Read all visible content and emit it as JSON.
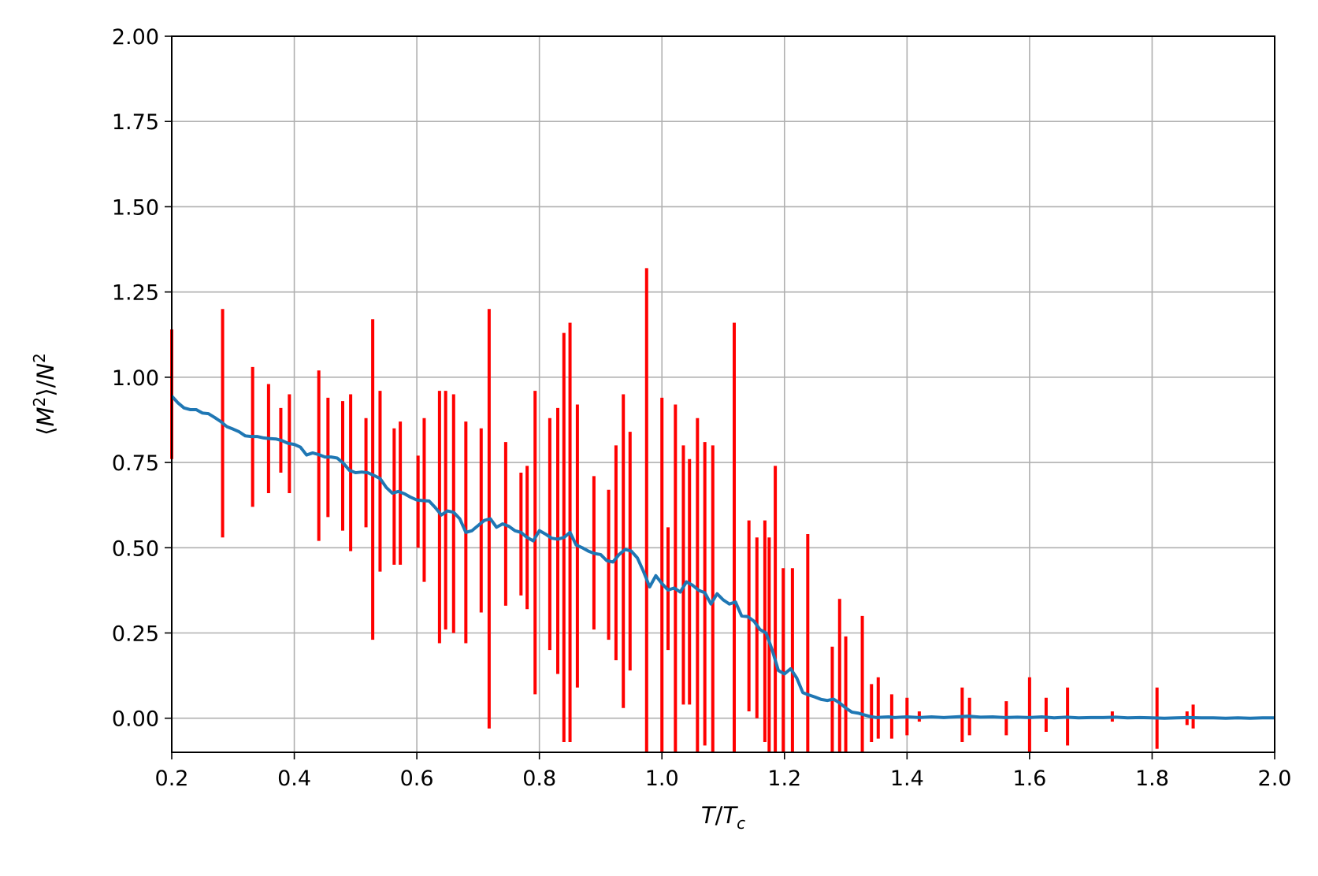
{
  "chart_data": {
    "type": "line",
    "xlabel": "T/T_c",
    "ylabel": "⟨M²⟩/N²",
    "xlim": [
      0.2,
      2.0
    ],
    "ylim": [
      -0.1,
      2.0
    ],
    "grid": true,
    "xticks": [
      "0.2",
      "0.4",
      "0.6",
      "0.8",
      "1.0",
      "1.2",
      "1.4",
      "1.6",
      "1.8",
      "2.0"
    ],
    "yticks": [
      "0.00",
      "0.25",
      "0.50",
      "0.75",
      "1.00",
      "1.25",
      "1.50",
      "1.75",
      "2.00"
    ],
    "colors": {
      "line": "#1f77b4",
      "errorbar": "#ff0000",
      "grid": "#b0b0b0"
    },
    "series": [
      {
        "values": [
          [
            0.2,
            0.945
          ],
          [
            0.21,
            0.925
          ],
          [
            0.22,
            0.91
          ],
          [
            0.23,
            0.905
          ],
          [
            0.24,
            0.905
          ],
          [
            0.25,
            0.895
          ],
          [
            0.26,
            0.893
          ],
          [
            0.27,
            0.882
          ],
          [
            0.28,
            0.87
          ],
          [
            0.29,
            0.855
          ],
          [
            0.3,
            0.848
          ],
          [
            0.31,
            0.84
          ],
          [
            0.32,
            0.828
          ],
          [
            0.33,
            0.826
          ],
          [
            0.34,
            0.826
          ],
          [
            0.35,
            0.822
          ],
          [
            0.36,
            0.82
          ],
          [
            0.37,
            0.819
          ],
          [
            0.38,
            0.814
          ],
          [
            0.39,
            0.806
          ],
          [
            0.4,
            0.803
          ],
          [
            0.41,
            0.795
          ],
          [
            0.42,
            0.772
          ],
          [
            0.43,
            0.778
          ],
          [
            0.44,
            0.773
          ],
          [
            0.45,
            0.766
          ],
          [
            0.46,
            0.766
          ],
          [
            0.47,
            0.763
          ],
          [
            0.48,
            0.748
          ],
          [
            0.49,
            0.727
          ],
          [
            0.5,
            0.72
          ],
          [
            0.51,
            0.722
          ],
          [
            0.52,
            0.72
          ],
          [
            0.53,
            0.712
          ],
          [
            0.54,
            0.703
          ],
          [
            0.55,
            0.677
          ],
          [
            0.56,
            0.66
          ],
          [
            0.57,
            0.665
          ],
          [
            0.58,
            0.658
          ],
          [
            0.59,
            0.648
          ],
          [
            0.6,
            0.64
          ],
          [
            0.61,
            0.638
          ],
          [
            0.62,
            0.637
          ],
          [
            0.63,
            0.618
          ],
          [
            0.64,
            0.596
          ],
          [
            0.65,
            0.608
          ],
          [
            0.66,
            0.604
          ],
          [
            0.67,
            0.585
          ],
          [
            0.68,
            0.545
          ],
          [
            0.69,
            0.55
          ],
          [
            0.7,
            0.565
          ],
          [
            0.71,
            0.58
          ],
          [
            0.72,
            0.585
          ],
          [
            0.73,
            0.56
          ],
          [
            0.74,
            0.57
          ],
          [
            0.75,
            0.563
          ],
          [
            0.76,
            0.55
          ],
          [
            0.77,
            0.545
          ],
          [
            0.78,
            0.53
          ],
          [
            0.79,
            0.52
          ],
          [
            0.8,
            0.55
          ],
          [
            0.81,
            0.54
          ],
          [
            0.82,
            0.528
          ],
          [
            0.83,
            0.525
          ],
          [
            0.84,
            0.53
          ],
          [
            0.85,
            0.545
          ],
          [
            0.86,
            0.508
          ],
          [
            0.87,
            0.5
          ],
          [
            0.88,
            0.49
          ],
          [
            0.89,
            0.483
          ],
          [
            0.9,
            0.48
          ],
          [
            0.91,
            0.462
          ],
          [
            0.92,
            0.458
          ],
          [
            0.93,
            0.48
          ],
          [
            0.94,
            0.495
          ],
          [
            0.95,
            0.49
          ],
          [
            0.96,
            0.47
          ],
          [
            0.97,
            0.43
          ],
          [
            0.98,
            0.385
          ],
          [
            0.99,
            0.418
          ],
          [
            1.0,
            0.395
          ],
          [
            1.01,
            0.376
          ],
          [
            1.02,
            0.382
          ],
          [
            1.03,
            0.37
          ],
          [
            1.04,
            0.4
          ],
          [
            1.05,
            0.39
          ],
          [
            1.06,
            0.375
          ],
          [
            1.07,
            0.368
          ],
          [
            1.08,
            0.335
          ],
          [
            1.09,
            0.365
          ],
          [
            1.1,
            0.347
          ],
          [
            1.11,
            0.335
          ],
          [
            1.12,
            0.341
          ],
          [
            1.13,
            0.3
          ],
          [
            1.14,
            0.298
          ],
          [
            1.15,
            0.285
          ],
          [
            1.16,
            0.26
          ],
          [
            1.17,
            0.25
          ],
          [
            1.18,
            0.2
          ],
          [
            1.19,
            0.14
          ],
          [
            1.2,
            0.13
          ],
          [
            1.21,
            0.145
          ],
          [
            1.22,
            0.118
          ],
          [
            1.23,
            0.075
          ],
          [
            1.24,
            0.068
          ],
          [
            1.25,
            0.062
          ],
          [
            1.26,
            0.055
          ],
          [
            1.27,
            0.052
          ],
          [
            1.28,
            0.056
          ],
          [
            1.29,
            0.045
          ],
          [
            1.3,
            0.03
          ],
          [
            1.31,
            0.018
          ],
          [
            1.32,
            0.015
          ],
          [
            1.33,
            0.01
          ],
          [
            1.34,
            0.005
          ],
          [
            1.35,
            0.002
          ],
          [
            1.36,
            0.003
          ],
          [
            1.37,
            0.004
          ],
          [
            1.38,
            0.002
          ],
          [
            1.39,
            0.003
          ],
          [
            1.4,
            0.004
          ],
          [
            1.42,
            0.002
          ],
          [
            1.44,
            0.004
          ],
          [
            1.46,
            0.002
          ],
          [
            1.48,
            0.004
          ],
          [
            1.5,
            0.006
          ],
          [
            1.52,
            0.003
          ],
          [
            1.54,
            0.004
          ],
          [
            1.56,
            0.002
          ],
          [
            1.58,
            0.003
          ],
          [
            1.6,
            0.002
          ],
          [
            1.62,
            0.004
          ],
          [
            1.64,
            0.001
          ],
          [
            1.66,
            0.003
          ],
          [
            1.68,
            0.001
          ],
          [
            1.7,
            0.002
          ],
          [
            1.72,
            0.002
          ],
          [
            1.74,
            0.003
          ],
          [
            1.76,
            0.001
          ],
          [
            1.78,
            0.002
          ],
          [
            1.8,
            0.001
          ],
          [
            1.82,
            0.0
          ],
          [
            1.84,
            0.001
          ],
          [
            1.86,
            0.002
          ],
          [
            1.88,
            0.001
          ],
          [
            1.9,
            0.001
          ],
          [
            1.92,
            0.0
          ],
          [
            1.94,
            0.001
          ],
          [
            1.96,
            0.0
          ],
          [
            1.98,
            0.001
          ],
          [
            2.0,
            0.001
          ]
        ]
      }
    ],
    "errorbars": [
      [
        0.2,
        0.76,
        1.14
      ],
      [
        0.283,
        0.53,
        1.2
      ],
      [
        0.332,
        0.62,
        1.03
      ],
      [
        0.358,
        0.66,
        0.98
      ],
      [
        0.378,
        0.72,
        0.91
      ],
      [
        0.392,
        0.66,
        0.95
      ],
      [
        0.44,
        0.52,
        1.02
      ],
      [
        0.455,
        0.59,
        0.94
      ],
      [
        0.479,
        0.55,
        0.93
      ],
      [
        0.492,
        0.49,
        0.95
      ],
      [
        0.517,
        0.56,
        0.88
      ],
      [
        0.528,
        0.23,
        1.17
      ],
      [
        0.54,
        0.43,
        0.96
      ],
      [
        0.563,
        0.45,
        0.85
      ],
      [
        0.573,
        0.45,
        0.87
      ],
      [
        0.602,
        0.5,
        0.77
      ],
      [
        0.612,
        0.4,
        0.88
      ],
      [
        0.637,
        0.22,
        0.96
      ],
      [
        0.647,
        0.26,
        0.96
      ],
      [
        0.66,
        0.25,
        0.95
      ],
      [
        0.68,
        0.22,
        0.87
      ],
      [
        0.705,
        0.31,
        0.85
      ],
      [
        0.718,
        -0.03,
        1.2
      ],
      [
        0.745,
        0.33,
        0.81
      ],
      [
        0.77,
        0.36,
        0.72
      ],
      [
        0.78,
        0.32,
        0.74
      ],
      [
        0.793,
        0.07,
        0.96
      ],
      [
        0.817,
        0.2,
        0.88
      ],
      [
        0.83,
        0.13,
        0.91
      ],
      [
        0.84,
        -0.07,
        1.13
      ],
      [
        0.85,
        -0.07,
        1.16
      ],
      [
        0.862,
        0.09,
        0.92
      ],
      [
        0.889,
        0.26,
        0.71
      ],
      [
        0.913,
        0.23,
        0.67
      ],
      [
        0.925,
        0.17,
        0.8
      ],
      [
        0.937,
        0.03,
        0.95
      ],
      [
        0.948,
        0.14,
        0.84
      ],
      [
        0.975,
        -0.1,
        1.32
      ],
      [
        1.0,
        -0.1,
        0.94
      ],
      [
        1.01,
        0.2,
        0.56
      ],
      [
        1.022,
        -0.1,
        0.92
      ],
      [
        1.035,
        0.04,
        0.8
      ],
      [
        1.045,
        0.04,
        0.76
      ],
      [
        1.058,
        -0.1,
        0.88
      ],
      [
        1.07,
        -0.08,
        0.81
      ],
      [
        1.083,
        -0.1,
        0.8
      ],
      [
        1.118,
        -0.1,
        1.16
      ],
      [
        1.142,
        0.02,
        0.58
      ],
      [
        1.155,
        0.0,
        0.53
      ],
      [
        1.168,
        -0.07,
        0.58
      ],
      [
        1.175,
        -0.1,
        0.53
      ],
      [
        1.185,
        -0.1,
        0.74
      ],
      [
        1.198,
        -0.1,
        0.44
      ],
      [
        1.213,
        -0.1,
        0.44
      ],
      [
        1.238,
        -0.1,
        0.54
      ],
      [
        1.278,
        -0.1,
        0.21
      ],
      [
        1.29,
        -0.1,
        0.35
      ],
      [
        1.3,
        -0.1,
        0.24
      ],
      [
        1.327,
        -0.1,
        0.3
      ],
      [
        1.342,
        -0.07,
        0.1
      ],
      [
        1.353,
        -0.06,
        0.12
      ],
      [
        1.375,
        -0.06,
        0.07
      ],
      [
        1.4,
        -0.05,
        0.06
      ],
      [
        1.42,
        -0.01,
        0.02
      ],
      [
        1.49,
        -0.07,
        0.09
      ],
      [
        1.502,
        -0.05,
        0.06
      ],
      [
        1.562,
        -0.05,
        0.05
      ],
      [
        1.6,
        -0.1,
        0.12
      ],
      [
        1.627,
        -0.04,
        0.06
      ],
      [
        1.662,
        -0.08,
        0.09
      ],
      [
        1.735,
        -0.01,
        0.02
      ],
      [
        1.808,
        -0.09,
        0.09
      ],
      [
        1.857,
        -0.02,
        0.02
      ],
      [
        1.867,
        -0.03,
        0.04
      ]
    ]
  }
}
